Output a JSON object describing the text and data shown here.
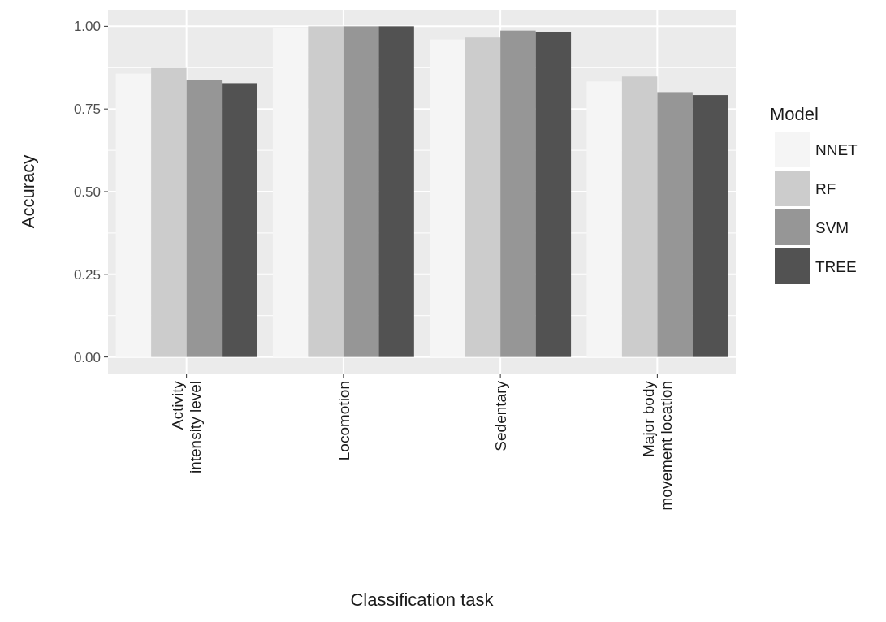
{
  "chart_data": {
    "type": "bar",
    "xlabel": "Classification task",
    "ylabel": "Accuracy",
    "legend_title": "Model",
    "categories": [
      "Activity intensity level",
      "Locomotion",
      "Sedentary",
      "Major body movement location"
    ],
    "series": [
      {
        "name": "NNET",
        "color": "#f5f5f5",
        "values": [
          0.857,
          0.995,
          0.96,
          0.833
        ]
      },
      {
        "name": "RF",
        "color": "#cccccc",
        "values": [
          0.874,
          1.0,
          0.966,
          0.848
        ]
      },
      {
        "name": "SVM",
        "color": "#969696",
        "values": [
          0.837,
          1.0,
          0.987,
          0.801
        ]
      },
      {
        "name": "TREE",
        "color": "#525252",
        "values": [
          0.828,
          1.0,
          0.982,
          0.792
        ]
      }
    ],
    "ylim": [
      -0.05,
      1.05
    ],
    "yticks": [
      {
        "value": 0,
        "label": "0.00"
      },
      {
        "value": 0.25,
        "label": "0.25"
      },
      {
        "value": 0.5,
        "label": "0.50"
      },
      {
        "value": 0.75,
        "label": "0.75"
      },
      {
        "value": 1,
        "label": "1.00"
      }
    ],
    "grid": true,
    "legend": "right"
  }
}
